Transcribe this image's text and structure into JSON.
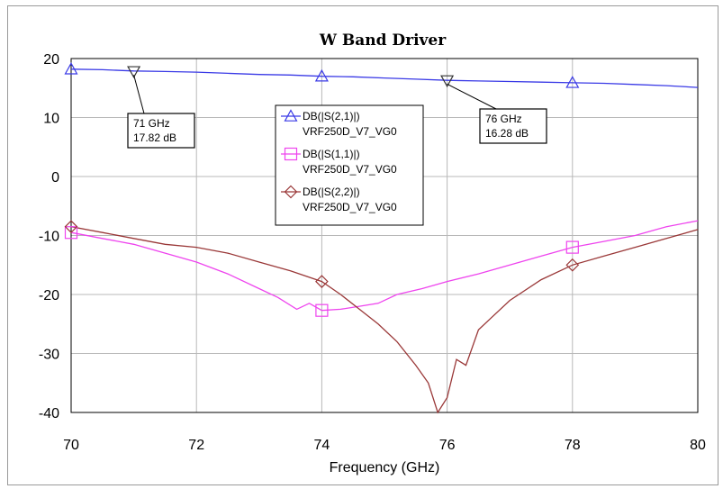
{
  "chart_data": {
    "type": "line",
    "title": "W Band Driver",
    "xlabel": "Frequency (GHz)",
    "ylabel": "",
    "xlim": [
      70,
      80
    ],
    "ylim": [
      -40,
      20
    ],
    "x_ticks": [
      70,
      72,
      74,
      76,
      78,
      80
    ],
    "y_ticks": [
      20,
      10,
      0,
      -10,
      -20,
      -30,
      -40
    ],
    "grid": true,
    "legend_position": "center",
    "series": [
      {
        "name": "DB(|S(2,1)|)",
        "sub": "VRF250D_V7_VG0",
        "color": "#3a3ae6",
        "marker": "triangle-up",
        "marker_x": [
          70,
          74,
          78
        ],
        "x": [
          70,
          70.5,
          71,
          71.5,
          72,
          72.5,
          73,
          73.5,
          74,
          74.5,
          75,
          75.5,
          76,
          76.5,
          77,
          77.5,
          78,
          78.5,
          79,
          79.5,
          80
        ],
        "y": [
          18.2,
          18.1,
          17.9,
          17.8,
          17.7,
          17.5,
          17.3,
          17.2,
          17.0,
          16.9,
          16.7,
          16.5,
          16.3,
          16.2,
          16.1,
          16.0,
          15.9,
          15.8,
          15.6,
          15.4,
          15.1
        ]
      },
      {
        "name": "DB(|S(1,1)|)",
        "sub": "VRF250D_V7_VG0",
        "color": "#ee44ee",
        "marker": "square",
        "marker_x": [
          70,
          74,
          78
        ],
        "x": [
          70,
          70.5,
          71,
          71.5,
          72,
          72.5,
          73,
          73.3,
          73.6,
          73.8,
          74,
          74.3,
          74.6,
          74.9,
          75.2,
          75.6,
          76,
          76.5,
          77,
          77.5,
          78,
          78.5,
          79,
          79.5,
          80
        ],
        "y": [
          -9.5,
          -10.5,
          -11.5,
          -13,
          -14.5,
          -16.5,
          -19,
          -20.5,
          -22.5,
          -21.5,
          -22.7,
          -22.5,
          -22,
          -21.5,
          -20,
          -19,
          -17.8,
          -16.5,
          -15,
          -13.5,
          -12,
          -11,
          -10,
          -8.5,
          -7.5
        ]
      },
      {
        "name": "DB(|S(2,2)|)",
        "sub": "VRF250D_V7_VG0",
        "color": "#9a3838",
        "marker": "diamond",
        "marker_x": [
          70,
          74,
          78
        ],
        "x": [
          70,
          70.5,
          71,
          71.5,
          72,
          72.5,
          73,
          73.5,
          74,
          74.3,
          74.6,
          74.9,
          75.2,
          75.5,
          75.7,
          75.85,
          76,
          76.15,
          76.3,
          76.5,
          76.7,
          77,
          77.5,
          78,
          78.5,
          79,
          79.5,
          80
        ],
        "y": [
          -8.5,
          -9.5,
          -10.5,
          -11.5,
          -12,
          -13,
          -14.5,
          -16,
          -17.8,
          -20,
          -22.5,
          -25,
          -28,
          -32,
          -35,
          -40,
          -37.5,
          -31,
          -32,
          -26,
          -24,
          -21,
          -17.5,
          -15,
          -13.5,
          -12,
          -10.5,
          -9
        ]
      }
    ],
    "annotations": [
      {
        "label_line1": "71 GHz",
        "label_line2": "17.82 dB",
        "x": 71,
        "y": 17.82,
        "marker": "triangle-down"
      },
      {
        "label_line1": "76 GHz",
        "label_line2": "16.28 dB",
        "x": 76,
        "y": 16.28,
        "marker": "triangle-down"
      }
    ]
  }
}
